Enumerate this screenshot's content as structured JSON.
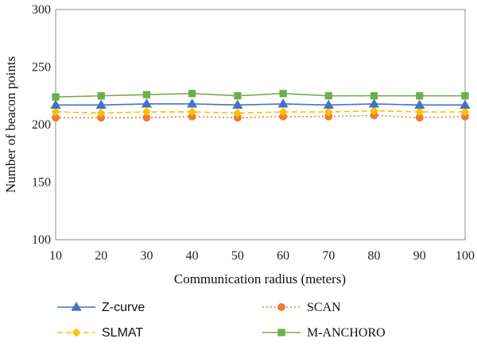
{
  "chart_data": {
    "type": "line",
    "title": "",
    "xlabel": "Communication radius (meters)",
    "ylabel": "Number of beacon points",
    "x": [
      10,
      20,
      30,
      40,
      50,
      60,
      70,
      80,
      90,
      100
    ],
    "xlim": [
      10,
      100
    ],
    "ylim": [
      100,
      300
    ],
    "yticks": [
      100,
      150,
      200,
      250,
      300
    ],
    "grid": false,
    "legend_position": "bottom",
    "series": [
      {
        "name": "Z-curve",
        "color": "#4472c4",
        "marker": "triangle",
        "line": "solid",
        "values": [
          217,
          217,
          218,
          218,
          217,
          218,
          217,
          218,
          217,
          217
        ]
      },
      {
        "name": "SCAN",
        "color": "#ed7d31",
        "marker": "circle",
        "line": "dotted",
        "values": [
          206,
          206,
          206,
          207,
          206,
          207,
          207,
          208,
          206,
          207
        ]
      },
      {
        "name": "SLMAT",
        "color": "#ffc000",
        "marker": "diamond",
        "line": "dashed",
        "values": [
          211,
          210,
          211,
          211,
          210,
          211,
          211,
          212,
          211,
          211
        ]
      },
      {
        "name": "M-ANCHORO",
        "color": "#70ad47",
        "marker": "square",
        "line": "solid",
        "values": [
          224,
          225,
          226,
          227,
          225,
          227,
          225,
          225,
          225,
          225
        ]
      }
    ]
  }
}
